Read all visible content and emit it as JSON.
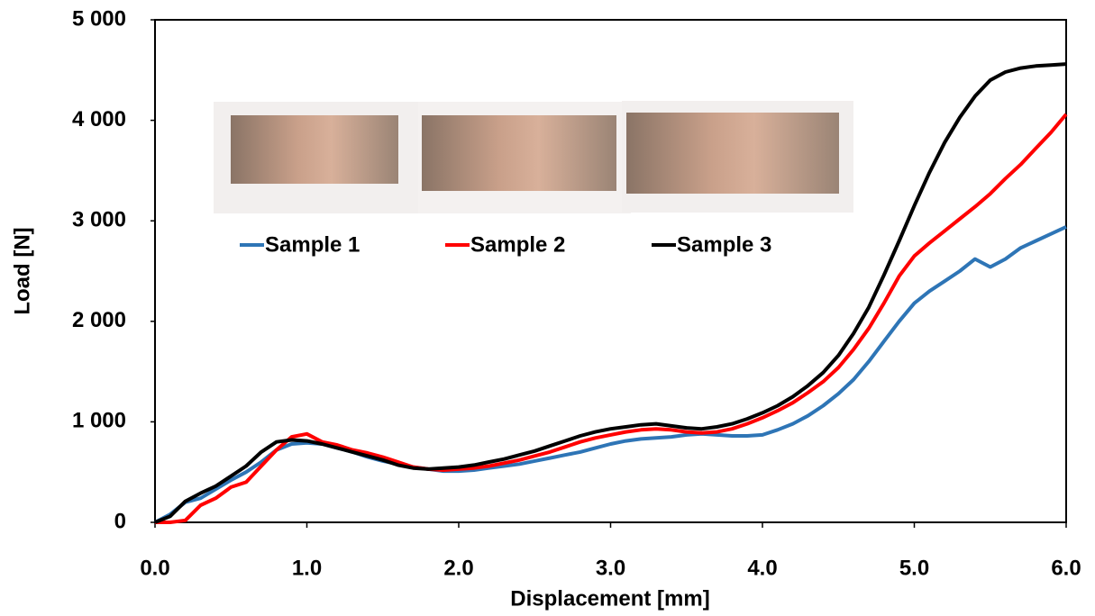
{
  "chart_data": {
    "type": "line",
    "x_label": "Displacement [mm]",
    "y_label": "Load [N]",
    "x": [
      0,
      0.1,
      0.2,
      0.3,
      0.4,
      0.5,
      0.6,
      0.7,
      0.8,
      0.9,
      1.0,
      1.1,
      1.2,
      1.3,
      1.4,
      1.5,
      1.6,
      1.7,
      1.8,
      1.9,
      2.0,
      2.1,
      2.2,
      2.3,
      2.4,
      2.5,
      2.6,
      2.7,
      2.8,
      2.9,
      3.0,
      3.1,
      3.2,
      3.3,
      3.4,
      3.5,
      3.6,
      3.7,
      3.8,
      3.9,
      4.0,
      4.1,
      4.2,
      4.3,
      4.4,
      4.5,
      4.6,
      4.7,
      4.8,
      4.9,
      5.0,
      5.1,
      5.2,
      5.3,
      5.4,
      5.5,
      5.6,
      5.7,
      5.8,
      5.9,
      6.0
    ],
    "series": [
      {
        "name": "Sample 1",
        "color": "#2e75b6",
        "values": [
          0,
          80,
          200,
          240,
          330,
          420,
          500,
          600,
          720,
          780,
          790,
          780,
          740,
          700,
          650,
          610,
          580,
          550,
          530,
          510,
          510,
          520,
          540,
          560,
          580,
          610,
          640,
          670,
          700,
          740,
          780,
          810,
          830,
          840,
          850,
          870,
          880,
          870,
          860,
          860,
          870,
          920,
          980,
          1060,
          1160,
          1280,
          1420,
          1600,
          1800,
          2000,
          2180,
          2300,
          2400,
          2500,
          2620,
          2540,
          2620,
          2730,
          2800,
          2870,
          2940
        ]
      },
      {
        "name": "Sample 2",
        "color": "#ff0000",
        "values": [
          0,
          0,
          20,
          170,
          240,
          350,
          400,
          560,
          720,
          850,
          880,
          800,
          770,
          720,
          690,
          650,
          600,
          550,
          530,
          520,
          530,
          540,
          560,
          590,
          620,
          660,
          700,
          750,
          800,
          840,
          870,
          900,
          920,
          930,
          920,
          900,
          890,
          900,
          930,
          980,
          1040,
          1110,
          1190,
          1290,
          1400,
          1540,
          1720,
          1930,
          2180,
          2450,
          2650,
          2780,
          2900,
          3020,
          3140,
          3270,
          3420,
          3560,
          3720,
          3880,
          4060
        ]
      },
      {
        "name": "Sample 3",
        "color": "#000000",
        "values": [
          0,
          60,
          210,
          290,
          360,
          460,
          560,
          700,
          800,
          820,
          810,
          780,
          740,
          700,
          660,
          620,
          570,
          540,
          530,
          540,
          550,
          570,
          600,
          630,
          670,
          710,
          760,
          810,
          860,
          900,
          930,
          950,
          970,
          980,
          960,
          940,
          930,
          950,
          980,
          1030,
          1090,
          1160,
          1250,
          1360,
          1490,
          1660,
          1880,
          2140,
          2460,
          2800,
          3150,
          3480,
          3780,
          4030,
          4240,
          4400,
          4480,
          4520,
          4540,
          4550,
          4560
        ]
      }
    ],
    "xlim": [
      0,
      6
    ],
    "xticks": [
      {
        "value": 0,
        "label": "0.0"
      },
      {
        "value": 1,
        "label": "1.0"
      },
      {
        "value": 2,
        "label": "2.0"
      },
      {
        "value": 3,
        "label": "3.0"
      },
      {
        "value": 4,
        "label": "4.0"
      },
      {
        "value": 5,
        "label": "5.0"
      },
      {
        "value": 6,
        "label": "6.0"
      }
    ],
    "ylim": [
      0,
      5000
    ],
    "yticks": [
      0,
      {
        "value": 1000,
        "label": "1 000"
      },
      {
        "value": 2000,
        "label": "2 000"
      },
      {
        "value": 3000,
        "label": "3 000"
      },
      {
        "value": 4000,
        "label": "4 000"
      },
      {
        "value": 5000,
        "label": "5 000"
      }
    ]
  }
}
